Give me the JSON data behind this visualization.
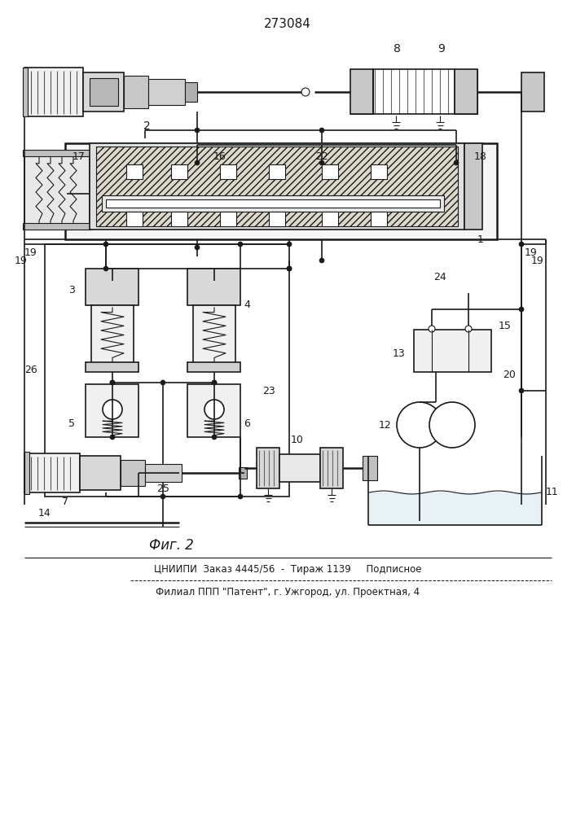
{
  "title_number": "273084",
  "fig_label": "Фиг. 2",
  "footer_line1": "ЦНИИПИ  Заказ 4445/56  -  Тираж 1139     Подписное",
  "footer_line2": "Филиал ППП \"Патент\", г. Ужгород, ул. Проектная, 4",
  "bg_color": "#ffffff",
  "lc": "#1a1a1a"
}
